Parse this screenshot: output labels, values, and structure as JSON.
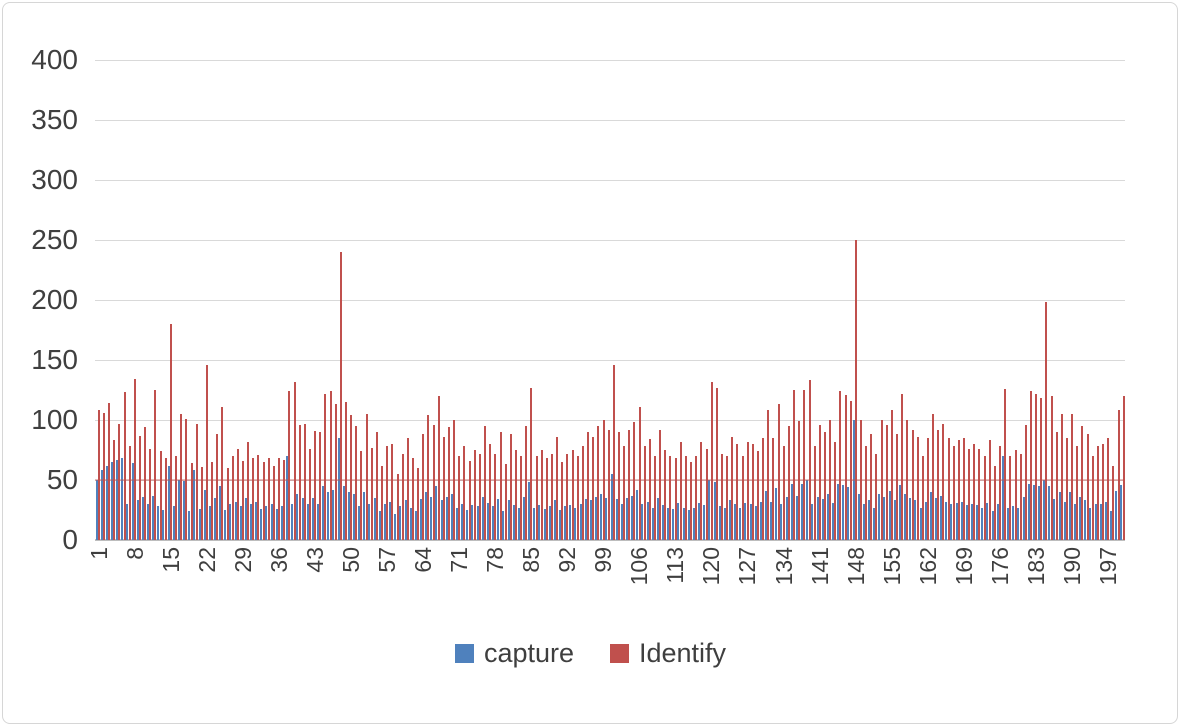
{
  "chart": {
    "legend": [
      {
        "label": "capture",
        "color": "#4F81BD",
        "swatch_icon": "square"
      },
      {
        "label": "Identify",
        "color": "#C0504D",
        "swatch_icon": "square"
      }
    ]
  },
  "colors": {
    "capture_blue": "#4F81BD",
    "identify_red": "#C0504D",
    "gridline": "#D9D9D9",
    "axis_line": "#BDBDBD",
    "tick_text": "#3F3F3F",
    "frame_border": "#D6D6D6",
    "accent_overlay_line": "rgba(192,80,77,0.38)"
  },
  "chart_data": {
    "type": "bar",
    "title": "",
    "xlabel": "",
    "ylabel": "",
    "n_categories": 200,
    "first_category": 1,
    "x_tick_step": 7,
    "x_tick_labels": [
      "1",
      "8",
      "15",
      "22",
      "29",
      "36",
      "43",
      "50",
      "57",
      "64",
      "71",
      "78",
      "85",
      "92",
      "99",
      "106",
      "113",
      "120",
      "127",
      "134",
      "141",
      "148",
      "155",
      "162",
      "169",
      "176",
      "183",
      "190",
      "197"
    ],
    "y_ticks": [
      0,
      50,
      100,
      150,
      200,
      250,
      300,
      350,
      400
    ],
    "ylim": [
      0,
      400
    ],
    "grid": true,
    "legend_position": "bottom",
    "series": [
      {
        "name": "capture",
        "color": "#4F81BD",
        "values": [
          50,
          58,
          62,
          65,
          67,
          68,
          30,
          64,
          33,
          36,
          30,
          37,
          28,
          25,
          62,
          28,
          50,
          49,
          24,
          58,
          26,
          42,
          28,
          35,
          45,
          25,
          30,
          32,
          28,
          35,
          30,
          32,
          26,
          28,
          30,
          26,
          28,
          70,
          30,
          38,
          35,
          30,
          35,
          30,
          45,
          40,
          42,
          85,
          45,
          40,
          38,
          28,
          40,
          30,
          35,
          24,
          30,
          32,
          22,
          28,
          33,
          27,
          24,
          34,
          40,
          36,
          45,
          33,
          36,
          38,
          27,
          30,
          25,
          29,
          28,
          36,
          31,
          28,
          34,
          24,
          33,
          29,
          27,
          36,
          48,
          27,
          29,
          26,
          28,
          33,
          25,
          28,
          29,
          27,
          30,
          34,
          33,
          36,
          38,
          35,
          55,
          34,
          30,
          35,
          37,
          42,
          30,
          32,
          27,
          35,
          29,
          27,
          26,
          31,
          27,
          25,
          27,
          31,
          29,
          50,
          48,
          28,
          27,
          33,
          30,
          27,
          31,
          30,
          28,
          32,
          41,
          32,
          43,
          30,
          36,
          47,
          37,
          47,
          50,
          30,
          36,
          34,
          38,
          31,
          47,
          46,
          44,
          100,
          38,
          30,
          33,
          27,
          38,
          36,
          41,
          33,
          46,
          38,
          35,
          33,
          27,
          32,
          40,
          35,
          37,
          32,
          30,
          31,
          32,
          29,
          30,
          29,
          27,
          31,
          24,
          30,
          70,
          27,
          28,
          27,
          36,
          47,
          46,
          45,
          50,
          45,
          34,
          40,
          32,
          40,
          30,
          36,
          33,
          27,
          30,
          30,
          32,
          24,
          41,
          46
        ]
      },
      {
        "name": "Identify",
        "color": "#C0504D",
        "values": [
          108,
          106,
          114,
          83,
          97,
          123,
          78,
          134,
          87,
          94,
          76,
          125,
          74,
          68,
          180,
          70,
          105,
          101,
          64,
          97,
          61,
          146,
          65,
          88,
          111,
          60,
          70,
          76,
          66,
          82,
          68,
          71,
          65,
          68,
          62,
          68,
          67,
          124,
          132,
          96,
          97,
          76,
          91,
          90,
          122,
          124,
          113,
          240,
          115,
          104,
          95,
          74,
          105,
          77,
          90,
          62,
          78,
          80,
          55,
          72,
          85,
          68,
          60,
          88,
          104,
          96,
          120,
          86,
          94,
          100,
          70,
          78,
          66,
          75,
          72,
          95,
          80,
          72,
          90,
          63,
          88,
          75,
          70,
          95,
          127,
          70,
          75,
          68,
          72,
          86,
          65,
          72,
          75,
          70,
          78,
          90,
          86,
          95,
          100,
          92,
          146,
          90,
          78,
          92,
          98,
          111,
          78,
          84,
          70,
          92,
          75,
          70,
          68,
          82,
          70,
          65,
          70,
          82,
          76,
          132,
          127,
          72,
          70,
          86,
          80,
          70,
          82,
          80,
          74,
          85,
          108,
          85,
          113,
          78,
          95,
          125,
          99,
          125,
          133,
          78,
          96,
          90,
          100,
          82,
          124,
          121,
          116,
          250,
          100,
          78,
          88,
          72,
          100,
          96,
          108,
          88,
          122,
          100,
          92,
          86,
          70,
          85,
          105,
          92,
          97,
          85,
          78,
          83,
          85,
          76,
          80,
          76,
          70,
          83,
          62,
          78,
          126,
          70,
          75,
          72,
          96,
          124,
          122,
          118,
          198,
          120,
          90,
          105,
          85,
          105,
          78,
          95,
          88,
          70,
          78,
          80,
          85,
          62,
          108,
          120
        ]
      }
    ]
  }
}
